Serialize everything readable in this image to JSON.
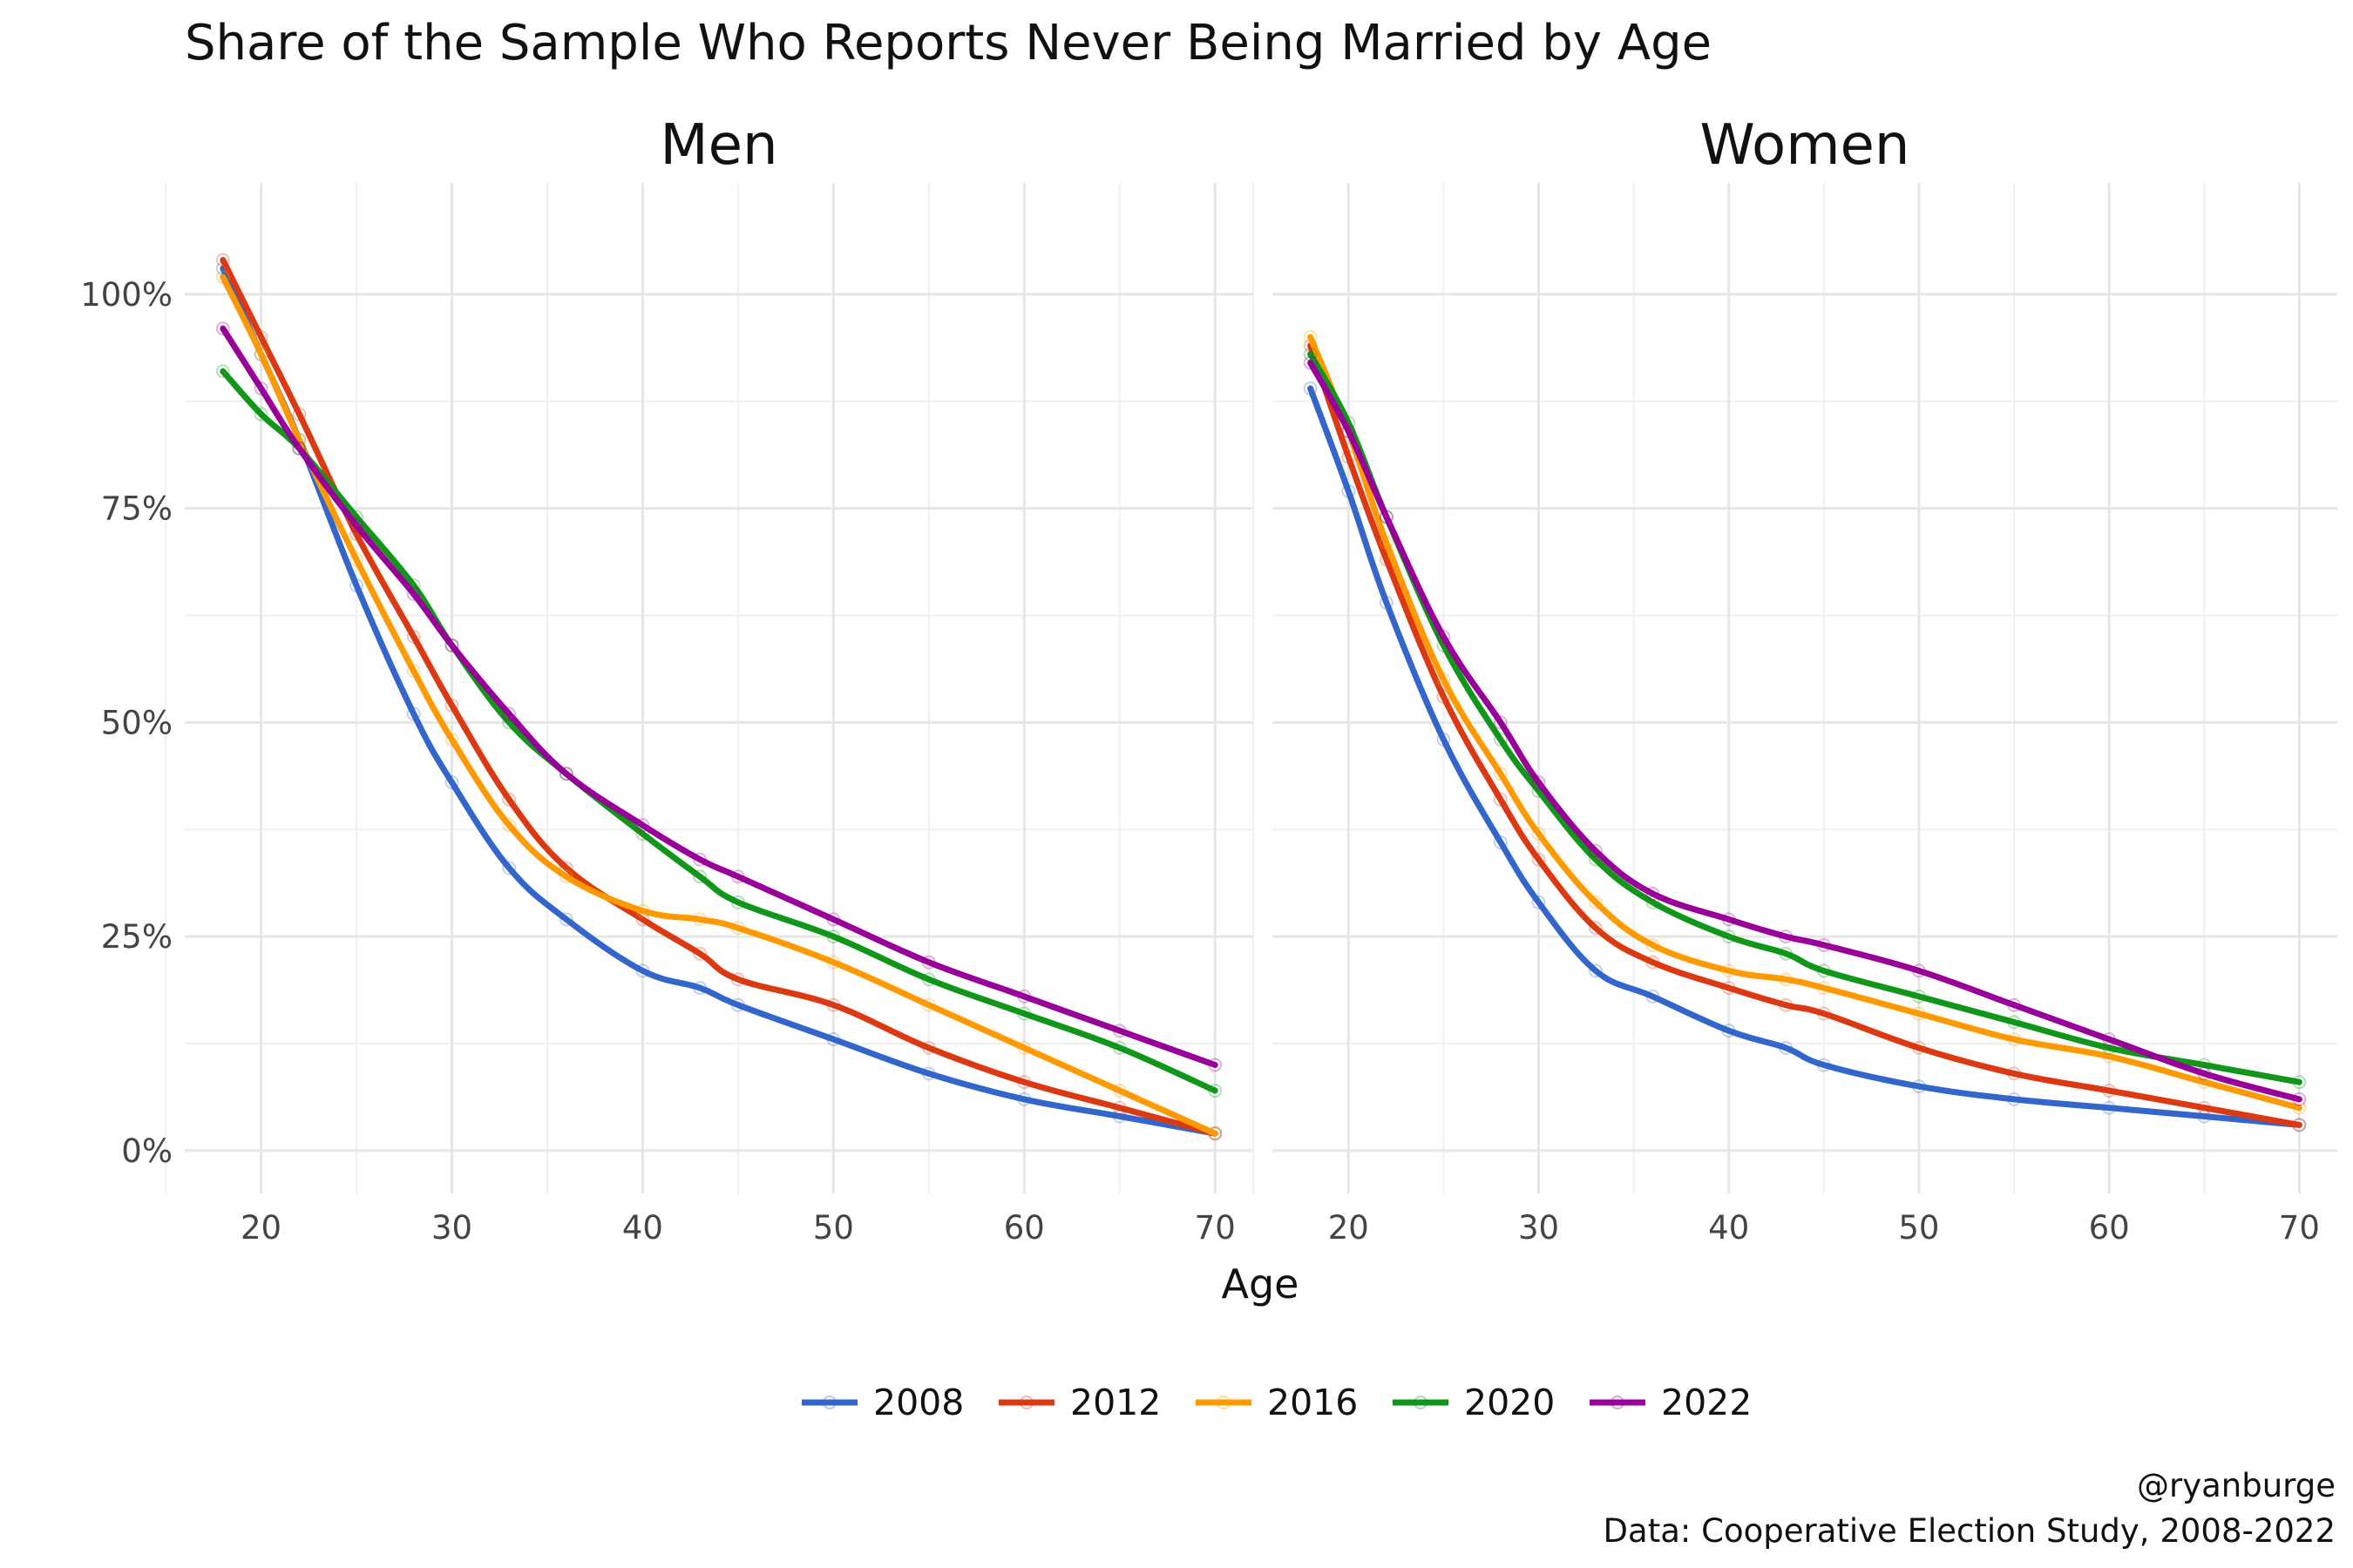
{
  "chart_data": {
    "type": "line",
    "title": "Share of the Sample Who Reports Never Being Married by Age",
    "xlabel": "Age",
    "ylabel": "",
    "xlim": [
      18,
      70
    ],
    "ylim": [
      0,
      1.05
    ],
    "x_ticks": [
      "20",
      "30",
      "40",
      "50",
      "60",
      "70"
    ],
    "y_ticks": [
      "0%",
      "25%",
      "50%",
      "75%",
      "100%"
    ],
    "grid": true,
    "legend_position": "bottom",
    "caption_lines": [
      "@ryanburge",
      "Data: Cooperative Election Study, 2008-2022"
    ],
    "series_names": [
      "2008",
      "2012",
      "2016",
      "2020",
      "2022"
    ],
    "colors": {
      "2008": "#3366cc",
      "2012": "#dc3912",
      "2016": "#ff9900",
      "2020": "#109618",
      "2022": "#990099"
    },
    "panels": [
      {
        "name": "Men",
        "x": [
          18,
          20,
          22,
          25,
          28,
          30,
          33,
          36,
          40,
          43,
          45,
          50,
          55,
          60,
          65,
          70
        ],
        "series": [
          {
            "name": "2008",
            "values": [
              1.03,
              0.93,
              0.83,
              0.66,
              0.51,
              0.43,
              0.33,
              0.27,
              0.21,
              0.19,
              0.17,
              0.13,
              0.09,
              0.06,
              0.04,
              0.02
            ]
          },
          {
            "name": "2012",
            "values": [
              1.04,
              0.95,
              0.86,
              0.72,
              0.6,
              0.52,
              0.41,
              0.33,
              0.27,
              0.23,
              0.2,
              0.17,
              0.12,
              0.08,
              0.05,
              0.02
            ]
          },
          {
            "name": "2016",
            "values": [
              1.02,
              0.93,
              0.83,
              0.69,
              0.56,
              0.48,
              0.38,
              0.32,
              0.28,
              0.27,
              0.26,
              0.22,
              0.17,
              0.12,
              0.07,
              0.02
            ]
          },
          {
            "name": "2020",
            "values": [
              0.91,
              0.86,
              0.82,
              0.74,
              0.66,
              0.59,
              0.5,
              0.44,
              0.37,
              0.32,
              0.29,
              0.25,
              0.2,
              0.16,
              0.12,
              0.07
            ]
          },
          {
            "name": "2022",
            "values": [
              0.96,
              0.89,
              0.82,
              0.73,
              0.65,
              0.59,
              0.51,
              0.44,
              0.38,
              0.34,
              0.32,
              0.27,
              0.22,
              0.18,
              0.14,
              0.1
            ]
          }
        ]
      },
      {
        "name": "Women",
        "x": [
          18,
          20,
          22,
          25,
          28,
          30,
          33,
          36,
          40,
          43,
          45,
          50,
          55,
          60,
          65,
          70
        ],
        "series": [
          {
            "name": "2008",
            "values": [
              0.89,
              0.77,
              0.64,
              0.48,
              0.36,
              0.29,
              0.21,
              0.18,
              0.14,
              0.12,
              0.1,
              0.075,
              0.06,
              0.05,
              0.04,
              0.03
            ]
          },
          {
            "name": "2012",
            "values": [
              0.94,
              0.81,
              0.69,
              0.53,
              0.41,
              0.34,
              0.26,
              0.22,
              0.19,
              0.17,
              0.16,
              0.12,
              0.09,
              0.07,
              0.05,
              0.03
            ]
          },
          {
            "name": "2016",
            "values": [
              0.95,
              0.84,
              0.71,
              0.55,
              0.44,
              0.37,
              0.29,
              0.24,
              0.21,
              0.2,
              0.19,
              0.16,
              0.13,
              0.11,
              0.08,
              0.05
            ]
          },
          {
            "name": "2020",
            "values": [
              0.93,
              0.85,
              0.74,
              0.59,
              0.48,
              0.42,
              0.34,
              0.29,
              0.25,
              0.23,
              0.21,
              0.18,
              0.15,
              0.12,
              0.1,
              0.08
            ]
          },
          {
            "name": "2022",
            "values": [
              0.92,
              0.84,
              0.74,
              0.6,
              0.5,
              0.43,
              0.35,
              0.3,
              0.27,
              0.25,
              0.24,
              0.21,
              0.17,
              0.13,
              0.09,
              0.06
            ]
          }
        ]
      }
    ]
  }
}
